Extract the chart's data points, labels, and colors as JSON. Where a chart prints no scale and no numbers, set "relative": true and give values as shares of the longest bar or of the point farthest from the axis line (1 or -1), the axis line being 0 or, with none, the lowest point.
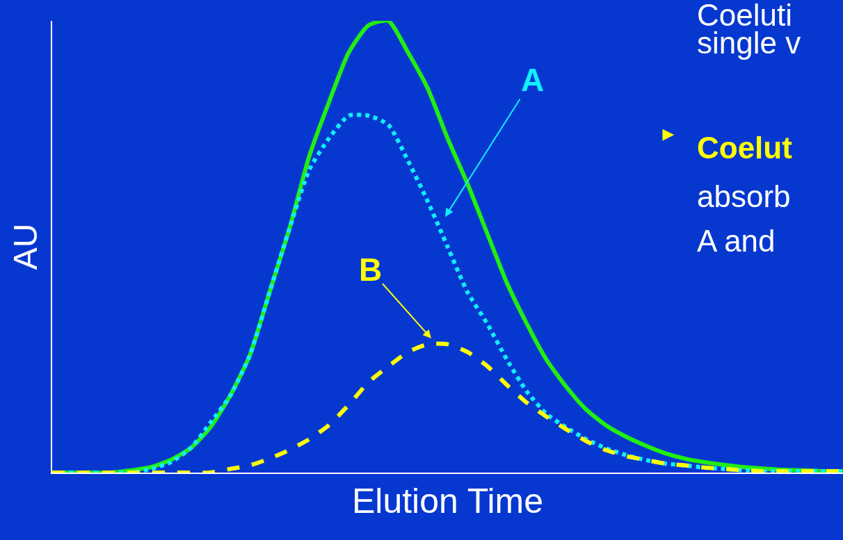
{
  "chart_data": {
    "type": "line",
    "relative": true,
    "xlabel": "Elution Time",
    "ylabel": "AU",
    "categories": [
      null,
      null,
      null,
      null,
      null,
      null,
      null,
      null,
      null,
      null,
      null,
      null,
      null,
      null,
      null,
      null,
      null,
      null,
      null,
      null,
      null,
      null,
      null,
      null,
      null,
      null,
      null,
      null,
      null,
      null,
      null,
      null,
      null,
      null,
      null,
      null,
      null,
      null,
      null,
      null,
      null
    ],
    "series": [
      {
        "color": "#22ee11",
        "line_style": "solid",
        "values": [
          0,
          0,
          0,
          0,
          0.005,
          0.012,
          0.028,
          0.054,
          0.1,
          0.17,
          0.26,
          0.4,
          0.54,
          0.7,
          0.82,
          0.93,
          0.99,
          1,
          0.93,
          0.85,
          0.74,
          0.64,
          0.53,
          0.42,
          0.33,
          0.25,
          0.19,
          0.14,
          0.105,
          0.08,
          0.06,
          0.043,
          0.031,
          0.023,
          0.017,
          0.012,
          0.009,
          0.006,
          0.005,
          0.003,
          0.003
        ]
      },
      {
        "color": "#11eeff",
        "line_style": "dotted",
        "values": [
          0,
          0,
          0,
          0,
          0,
          0.008,
          0.023,
          0.054,
          0.11,
          0.17,
          0.26,
          0.4,
          0.54,
          0.67,
          0.74,
          0.79,
          0.79,
          0.77,
          0.69,
          0.6,
          0.5,
          0.4,
          0.33,
          0.25,
          0.18,
          0.13,
          0.1,
          0.074,
          0.054,
          0.039,
          0.028,
          0.02,
          0.016,
          0.011,
          0.008,
          0.005,
          0.003,
          0.003,
          0.003,
          0.003,
          0.003
        ]
      },
      {
        "color": "#ffff00",
        "line_style": "dashed",
        "values": [
          0,
          0,
          0,
          0,
          0,
          0,
          0,
          0,
          0,
          0.008,
          0.016,
          0.031,
          0.05,
          0.074,
          0.105,
          0.15,
          0.2,
          0.235,
          0.267,
          0.284,
          0.284,
          0.267,
          0.236,
          0.194,
          0.155,
          0.124,
          0.096,
          0.07,
          0.05,
          0.037,
          0.028,
          0.02,
          0.016,
          0.011,
          0.008,
          0.005,
          0.003,
          0.003,
          0.003,
          0.003,
          0.003
        ]
      }
    ],
    "annotations": [
      "A",
      "B",
      "Coeluti",
      "single v",
      "►",
      "Coelut",
      "absorb",
      "A and"
    ]
  }
}
